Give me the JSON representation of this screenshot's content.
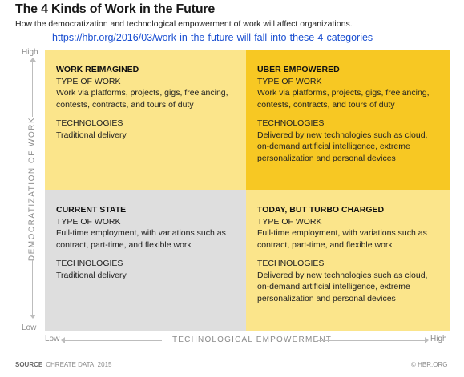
{
  "header": {
    "title": "The 4 Kinds of Work in the Future",
    "subtitle": "How the democratization and technological empowerment of work will affect organizations.",
    "url": "https://hbr.org/2016/03/work-in-the-future-will-fall-into-these-4-categories"
  },
  "axes": {
    "y_high": "High",
    "y_low": "Low",
    "y_title": "DEMOCRATIZATION OF WORK",
    "x_low": "Low",
    "x_high": "High",
    "x_title": "TECHNOLOGICAL EMPOWERMENT"
  },
  "quadrants": {
    "top_left": {
      "title": "WORK REIMAGINED",
      "type_label": "TYPE OF WORK",
      "type_text": "Work via platforms, projects, gigs, freelancing, contests, contracts, and tours of duty",
      "tech_label": "TECHNOLOGIES",
      "tech_text": "Traditional delivery",
      "color": "#fbe58b"
    },
    "top_right": {
      "title": "UBER EMPOWERED",
      "type_label": "TYPE OF WORK",
      "type_text": "Work via platforms, projects, gigs, freelancing, contests, contracts, and tours of duty",
      "tech_label": "TECHNOLOGIES",
      "tech_text": "Delivered by new technologies such as cloud, on-demand artificial intelligence, extreme personalization and personal devices",
      "color": "#f7c823"
    },
    "bottom_left": {
      "title": "CURRENT STATE",
      "type_label": "TYPE OF WORK",
      "type_text": "Full-time employment, with variations such as contract, part-time, and flexible work",
      "tech_label": "TECHNOLOGIES",
      "tech_text": "Traditional delivery",
      "color": "#dedede"
    },
    "bottom_right": {
      "title": "TODAY, BUT TURBO CHARGED",
      "type_label": "TYPE OF WORK",
      "type_text": "Full-time employment, with variations such as contract, part-time, and flexible work",
      "tech_label": "TECHNOLOGIES",
      "tech_text": "Delivered by new technologies such as cloud, on-demand artificial intelligence, extreme personalization and personal devices",
      "color": "#fbe58b"
    }
  },
  "footer": {
    "source_label": "SOURCE",
    "source_text": "CHREATE DATA, 2015",
    "credit": "© HBR.ORG"
  }
}
